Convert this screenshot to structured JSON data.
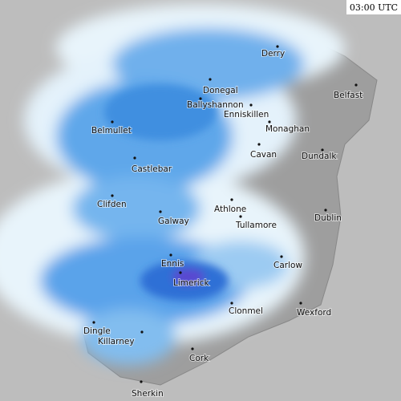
{
  "timestamp": "03:00 UTC",
  "places": [
    {
      "name": "Derry"
    },
    {
      "name": "Donegal"
    },
    {
      "name": "Ballyshannon"
    },
    {
      "name": "Enniskillen"
    },
    {
      "name": "Belfast"
    },
    {
      "name": "Belmullet"
    },
    {
      "name": "Monaghan"
    },
    {
      "name": "Cavan"
    },
    {
      "name": "Dundalk"
    },
    {
      "name": "Castlebar"
    },
    {
      "name": "Clifden"
    },
    {
      "name": "Athlone"
    },
    {
      "name": "Tullamore"
    },
    {
      "name": "Dublin"
    },
    {
      "name": "Galway"
    },
    {
      "name": "Ennis"
    },
    {
      "name": "Carlow"
    },
    {
      "name": "Limerick"
    },
    {
      "name": "Clonmel"
    },
    {
      "name": "Wexford"
    },
    {
      "name": "Dingle"
    },
    {
      "name": "Killarney"
    },
    {
      "name": "Cork"
    },
    {
      "name": "Sherkin"
    }
  ]
}
